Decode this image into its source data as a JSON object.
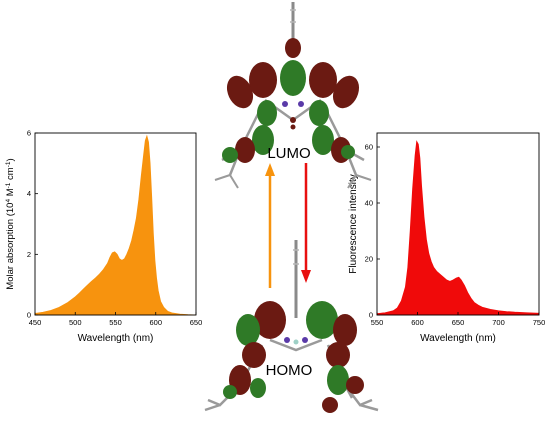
{
  "colors": {
    "absorption": "#f7930e",
    "fluorescence": "#f00a0a",
    "arrow_up": "#f7930e",
    "arrow_down": "#e81010",
    "lobe_dark": "#6b1a12",
    "lobe_green": "#2f7a27",
    "frame": "#000000"
  },
  "orbitals": {
    "lumo_label": "LUMO",
    "homo_label": "HOMO"
  },
  "chart_data": [
    {
      "type": "area",
      "xlabel": "Wavelength (nm)",
      "ylabel": "Molar absorption (10",
      "ylabel_sup1": "4",
      "ylabel_mid": " M",
      "ylabel_sup2": "-1",
      "ylabel_end": " cm",
      "ylabel_sup3": "-1",
      "ylabel_close": ")",
      "xlim": [
        450,
        650
      ],
      "ylim": [
        0,
        6
      ],
      "xticks": [
        450,
        500,
        550,
        600,
        650
      ],
      "yticks": [
        0,
        2,
        4,
        6
      ],
      "x": [
        450,
        460,
        470,
        480,
        490,
        500,
        505,
        510,
        515,
        520,
        525,
        530,
        535,
        540,
        543,
        546,
        549,
        552,
        555,
        558,
        561,
        564,
        567,
        570,
        573,
        576,
        579,
        582,
        585,
        587,
        589,
        591,
        593,
        595,
        597,
        599,
        601,
        603,
        606,
        610,
        615,
        620,
        630,
        640,
        650
      ],
      "y": [
        0.05,
        0.09,
        0.15,
        0.25,
        0.4,
        0.6,
        0.72,
        0.85,
        0.98,
        1.1,
        1.22,
        1.35,
        1.5,
        1.7,
        1.9,
        2.05,
        2.08,
        2.0,
        1.85,
        1.8,
        1.85,
        2.0,
        2.2,
        2.45,
        2.8,
        3.2,
        3.8,
        4.6,
        5.3,
        5.75,
        5.9,
        5.7,
        5.0,
        3.9,
        2.7,
        1.8,
        1.2,
        0.8,
        0.45,
        0.25,
        0.12,
        0.07,
        0.03,
        0.01,
        0.0
      ]
    },
    {
      "type": "area",
      "xlabel": "Wavelength (nm)",
      "ylabel": "Fluorescence intensity",
      "xlim": [
        550,
        750
      ],
      "ylim": [
        0,
        65
      ],
      "xticks": [
        550,
        600,
        650,
        700,
        750
      ],
      "yticks": [
        0,
        20,
        40,
        60
      ],
      "x": [
        550,
        560,
        570,
        575,
        580,
        585,
        588,
        591,
        594,
        597,
        599,
        601,
        603,
        605,
        608,
        611,
        614,
        617,
        620,
        624,
        628,
        632,
        636,
        640,
        644,
        648,
        651,
        654,
        658,
        662,
        666,
        670,
        675,
        680,
        690,
        700,
        710,
        720,
        735,
        750
      ],
      "y": [
        0.5,
        0.8,
        1.5,
        2.5,
        5,
        10,
        17,
        30,
        45,
        57,
        62,
        61,
        56,
        46,
        35,
        27,
        22,
        19,
        17,
        15.5,
        14.5,
        13.5,
        12.5,
        12,
        12.5,
        13.2,
        13.5,
        12.5,
        10.5,
        8,
        6,
        4.5,
        3.5,
        2.8,
        2,
        1.5,
        1.2,
        1,
        0.8,
        0.6
      ]
    }
  ]
}
